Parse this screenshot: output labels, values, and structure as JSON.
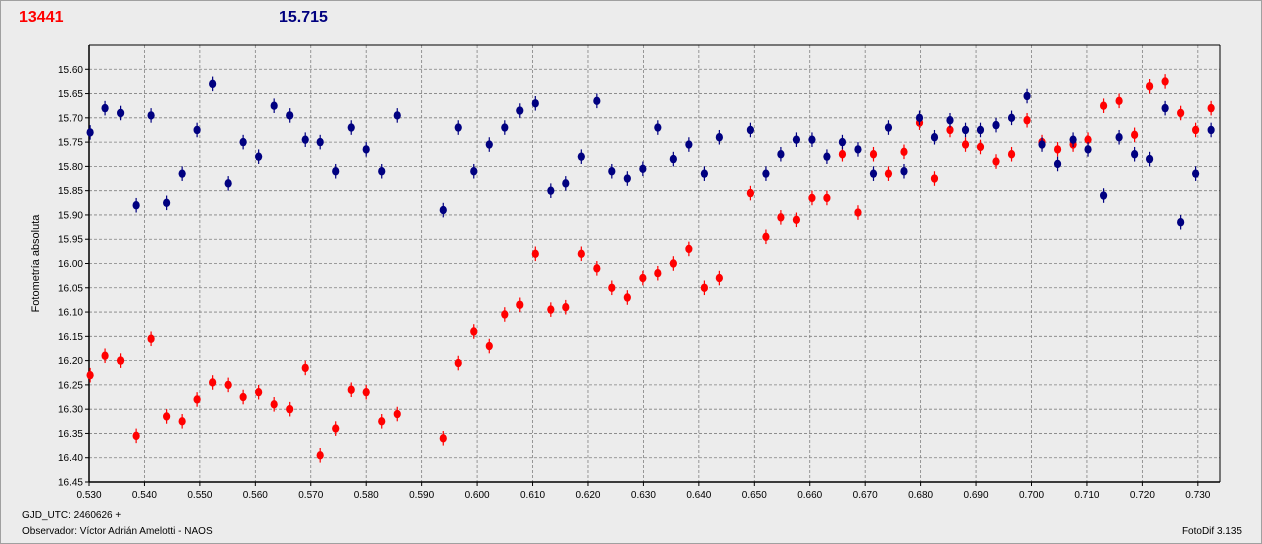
{
  "header": {
    "object_id": "13441",
    "reference_value": "15.715"
  },
  "footer": {
    "gjd_label": "GJD_UTC: 2460626 +",
    "observer": "Observador: Víctor Adrián Amelotti - NAOS",
    "software": "FotoDif 3.135"
  },
  "colors": {
    "series_a": "#ff0000",
    "series_b": "#000080",
    "grid": "#808080",
    "plot_bg": "#ececec"
  },
  "chart_data": {
    "type": "scatter",
    "title": "",
    "xlabel": "",
    "ylabel": "Fotometría absoluta",
    "xlim": [
      0.53,
      0.734
    ],
    "ylim": [
      15.55,
      16.45
    ],
    "y_inverted": true,
    "grid": true,
    "x_ticks": [
      "0.530",
      "0.540",
      "0.550",
      "0.560",
      "0.570",
      "0.580",
      "0.590",
      "0.600",
      "0.610",
      "0.620",
      "0.630",
      "0.640",
      "0.650",
      "0.660",
      "0.670",
      "0.680",
      "0.690",
      "0.700",
      "0.710",
      "0.720",
      "0.730"
    ],
    "y_ticks": [
      "15.60",
      "15.65",
      "15.70",
      "15.75",
      "15.80",
      "15.85",
      "15.90",
      "15.95",
      "16.00",
      "16.05",
      "16.10",
      "16.15",
      "16.20",
      "16.25",
      "16.30",
      "16.35",
      "16.40",
      "16.45"
    ],
    "error_bar": 0.015,
    "series": [
      {
        "color": "#ff0000",
        "points": [
          [
            0.5302,
            16.23
          ],
          [
            0.5329,
            16.19
          ],
          [
            0.5357,
            16.2
          ],
          [
            0.5385,
            16.355
          ],
          [
            0.5412,
            16.155
          ],
          [
            0.544,
            16.315
          ],
          [
            0.5468,
            16.325
          ],
          [
            0.5495,
            16.28
          ],
          [
            0.5523,
            16.245
          ],
          [
            0.5551,
            16.25
          ],
          [
            0.5578,
            16.275
          ],
          [
            0.5606,
            16.265
          ],
          [
            0.5634,
            16.29
          ],
          [
            0.5662,
            16.3
          ],
          [
            0.569,
            16.215
          ],
          [
            0.5717,
            16.395
          ],
          [
            0.5745,
            16.34
          ],
          [
            0.5773,
            16.26
          ],
          [
            0.58,
            16.265
          ],
          [
            0.5828,
            16.325
          ],
          [
            0.5856,
            16.31
          ],
          [
            0.5939,
            16.36
          ],
          [
            0.5966,
            16.205
          ],
          [
            0.5994,
            16.14
          ],
          [
            0.6022,
            16.17
          ],
          [
            0.605,
            16.105
          ],
          [
            0.6077,
            16.085
          ],
          [
            0.6105,
            15.98
          ],
          [
            0.6133,
            16.095
          ],
          [
            0.616,
            16.09
          ],
          [
            0.6188,
            15.98
          ],
          [
            0.6216,
            16.01
          ],
          [
            0.6243,
            16.05
          ],
          [
            0.6271,
            16.07
          ],
          [
            0.6299,
            16.03
          ],
          [
            0.6326,
            16.02
          ],
          [
            0.6354,
            16.0
          ],
          [
            0.6382,
            15.97
          ],
          [
            0.641,
            16.05
          ],
          [
            0.6437,
            16.03
          ],
          [
            0.6493,
            15.855
          ],
          [
            0.6521,
            15.945
          ],
          [
            0.6548,
            15.905
          ],
          [
            0.6576,
            15.91
          ],
          [
            0.6604,
            15.865
          ],
          [
            0.6631,
            15.865
          ],
          [
            0.6659,
            15.775
          ],
          [
            0.6687,
            15.895
          ],
          [
            0.6715,
            15.775
          ],
          [
            0.6742,
            15.815
          ],
          [
            0.677,
            15.77
          ],
          [
            0.6798,
            15.71
          ],
          [
            0.6825,
            15.825
          ],
          [
            0.6853,
            15.725
          ],
          [
            0.6881,
            15.755
          ],
          [
            0.6908,
            15.76
          ],
          [
            0.6936,
            15.79
          ],
          [
            0.6964,
            15.775
          ],
          [
            0.6992,
            15.705
          ],
          [
            0.7019,
            15.75
          ],
          [
            0.7047,
            15.765
          ],
          [
            0.7075,
            15.755
          ],
          [
            0.7102,
            15.745
          ],
          [
            0.713,
            15.675
          ],
          [
            0.7158,
            15.665
          ],
          [
            0.7186,
            15.735
          ],
          [
            0.7213,
            15.635
          ],
          [
            0.7241,
            15.625
          ],
          [
            0.7269,
            15.69
          ],
          [
            0.7296,
            15.725
          ],
          [
            0.7324,
            15.68
          ]
        ]
      },
      {
        "color": "#000080",
        "points": [
          [
            0.5302,
            15.73
          ],
          [
            0.5329,
            15.68
          ],
          [
            0.5357,
            15.69
          ],
          [
            0.5385,
            15.88
          ],
          [
            0.5412,
            15.695
          ],
          [
            0.544,
            15.875
          ],
          [
            0.5468,
            15.815
          ],
          [
            0.5495,
            15.725
          ],
          [
            0.5523,
            15.63
          ],
          [
            0.5551,
            15.835
          ],
          [
            0.5578,
            15.75
          ],
          [
            0.5606,
            15.78
          ],
          [
            0.5634,
            15.675
          ],
          [
            0.5662,
            15.695
          ],
          [
            0.569,
            15.745
          ],
          [
            0.5717,
            15.75
          ],
          [
            0.5745,
            15.81
          ],
          [
            0.5773,
            15.72
          ],
          [
            0.58,
            15.765
          ],
          [
            0.5828,
            15.81
          ],
          [
            0.5856,
            15.695
          ],
          [
            0.5939,
            15.89
          ],
          [
            0.5966,
            15.72
          ],
          [
            0.5994,
            15.81
          ],
          [
            0.6022,
            15.755
          ],
          [
            0.605,
            15.72
          ],
          [
            0.6077,
            15.685
          ],
          [
            0.6105,
            15.67
          ],
          [
            0.6133,
            15.85
          ],
          [
            0.616,
            15.835
          ],
          [
            0.6188,
            15.78
          ],
          [
            0.6216,
            15.665
          ],
          [
            0.6243,
            15.81
          ],
          [
            0.6271,
            15.825
          ],
          [
            0.6299,
            15.805
          ],
          [
            0.6326,
            15.72
          ],
          [
            0.6354,
            15.785
          ],
          [
            0.6382,
            15.755
          ],
          [
            0.641,
            15.815
          ],
          [
            0.6437,
            15.74
          ],
          [
            0.6493,
            15.725
          ],
          [
            0.6521,
            15.815
          ],
          [
            0.6548,
            15.775
          ],
          [
            0.6576,
            15.745
          ],
          [
            0.6604,
            15.745
          ],
          [
            0.6631,
            15.78
          ],
          [
            0.6659,
            15.75
          ],
          [
            0.6687,
            15.765
          ],
          [
            0.6715,
            15.815
          ],
          [
            0.6742,
            15.72
          ],
          [
            0.677,
            15.81
          ],
          [
            0.6798,
            15.7
          ],
          [
            0.6825,
            15.74
          ],
          [
            0.6853,
            15.705
          ],
          [
            0.6881,
            15.725
          ],
          [
            0.6908,
            15.725
          ],
          [
            0.6936,
            15.715
          ],
          [
            0.6964,
            15.7
          ],
          [
            0.6992,
            15.655
          ],
          [
            0.7019,
            15.755
          ],
          [
            0.7047,
            15.795
          ],
          [
            0.7075,
            15.745
          ],
          [
            0.7102,
            15.765
          ],
          [
            0.713,
            15.86
          ],
          [
            0.7158,
            15.74
          ],
          [
            0.7186,
            15.775
          ],
          [
            0.7213,
            15.785
          ],
          [
            0.7241,
            15.68
          ],
          [
            0.7269,
            15.915
          ],
          [
            0.7296,
            15.815
          ],
          [
            0.7324,
            15.725
          ]
        ]
      }
    ]
  }
}
